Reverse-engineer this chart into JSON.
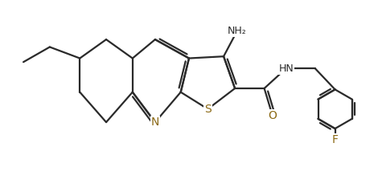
{
  "bg_color": "#ffffff",
  "line_color": "#2a2a2a",
  "atom_color": "#8b6914",
  "line_width": 1.6,
  "font_size_atom": 9,
  "fig_width": 4.7,
  "fig_height": 2.34,
  "xlim": [
    0,
    10
  ],
  "ylim": [
    0,
    5
  ]
}
